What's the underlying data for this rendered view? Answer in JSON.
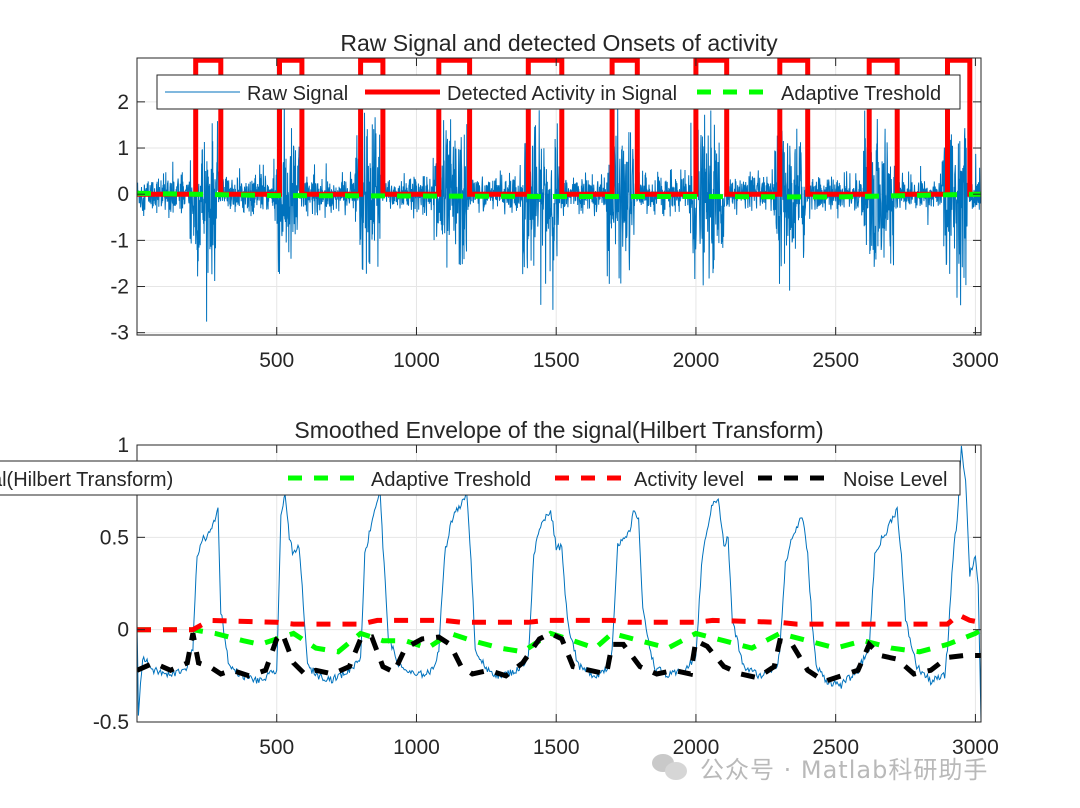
{
  "watermark": {
    "text": "公众号 · Matlab科研助手",
    "icon": "wechat-icon"
  },
  "chart_data": [
    {
      "type": "line",
      "title": "Raw Signal and detected Onsets of activity",
      "xlabel": "",
      "ylabel": "",
      "xlim": [
        0,
        3020
      ],
      "ylim": [
        -3.05,
        2.95
      ],
      "xticks": [
        500,
        1000,
        1500,
        2000,
        2500,
        3000
      ],
      "yticks": [
        -3,
        -2,
        -1,
        0,
        1,
        2
      ],
      "grid": true,
      "legend_placement": "top",
      "bursts": [
        [
          210,
          300
        ],
        [
          510,
          590
        ],
        [
          800,
          880
        ],
        [
          1080,
          1190
        ],
        [
          1400,
          1520
        ],
        [
          1700,
          1790
        ],
        [
          2000,
          2110
        ],
        [
          2300,
          2400
        ],
        [
          2620,
          2720
        ],
        [
          2900,
          2980
        ]
      ],
      "series": [
        {
          "name": "Raw Signal",
          "color": "#0072BD",
          "style": "solid",
          "description_points": {
            "baseline_amplitude": 0.4,
            "burst_amplitude_min": -3.0,
            "burst_amplitude_max": 2.6,
            "n_samples": 3020
          }
        },
        {
          "name": "Detected Activity in Signal",
          "color": "#FF0000",
          "style": "solid",
          "x": [
            0,
            210,
            210,
            300,
            300,
            510,
            510,
            590,
            590,
            800,
            800,
            880,
            880,
            1080,
            1080,
            1190,
            1190,
            1400,
            1400,
            1520,
            1520,
            1700,
            1700,
            1790,
            1790,
            2000,
            2000,
            2110,
            2110,
            2300,
            2300,
            2400,
            2400,
            2620,
            2620,
            2720,
            2720,
            2900,
            2900,
            2980,
            2980,
            3020
          ],
          "y": [
            0,
            0,
            2.9,
            2.9,
            0,
            0,
            2.9,
            2.9,
            0,
            0,
            2.9,
            2.9,
            0,
            0,
            2.9,
            2.9,
            0,
            0,
            2.9,
            2.9,
            0,
            0,
            2.9,
            2.9,
            0,
            0,
            2.9,
            2.9,
            0,
            0,
            2.9,
            2.9,
            0,
            0,
            2.9,
            2.9,
            0,
            0,
            2.9,
            2.9,
            0,
            0
          ]
        },
        {
          "name": "Adaptive Treshold",
          "color": "#00FF00",
          "style": "dashed",
          "x": [
            0,
            500,
            1000,
            1500,
            2000,
            2500,
            3020
          ],
          "y": [
            0.02,
            -0.03,
            -0.04,
            -0.05,
            -0.05,
            -0.06,
            0.0
          ]
        }
      ]
    },
    {
      "type": "line",
      "title": "Smoothed Envelope of the signal(Hilbert Transform)",
      "xlabel": "",
      "ylabel": "",
      "xlim": [
        0,
        3020
      ],
      "ylim": [
        -0.5,
        1
      ],
      "xticks": [
        500,
        1000,
        1500,
        2000,
        2500,
        3000
      ],
      "yticks": [
        -0.5,
        0,
        0.5,
        1
      ],
      "grid": true,
      "legend_placement": "top",
      "series": [
        {
          "name": "Smoothed Envelope of the signal(Hilbert Transform)",
          "color": "#0072BD",
          "style": "solid",
          "x": [
            0,
            5,
            20,
            60,
            120,
            180,
            200,
            215,
            230,
            260,
            290,
            300,
            330,
            380,
            440,
            500,
            515,
            530,
            545,
            560,
            580,
            595,
            610,
            650,
            700,
            760,
            800,
            815,
            835,
            850,
            870,
            880,
            900,
            940,
            1000,
            1060,
            1080,
            1100,
            1120,
            1140,
            1160,
            1180,
            1195,
            1210,
            1250,
            1300,
            1360,
            1400,
            1420,
            1440,
            1460,
            1480,
            1500,
            1520,
            1540,
            1580,
            1640,
            1690,
            1700,
            1720,
            1740,
            1760,
            1780,
            1795,
            1810,
            1850,
            1900,
            1960,
            2000,
            2020,
            2040,
            2060,
            2080,
            2100,
            2115,
            2130,
            2170,
            2230,
            2290,
            2300,
            2320,
            2340,
            2360,
            2380,
            2400,
            2415,
            2430,
            2470,
            2520,
            2580,
            2620,
            2640,
            2660,
            2680,
            2700,
            2720,
            2735,
            2750,
            2790,
            2840,
            2890,
            2900,
            2920,
            2935,
            2950,
            2965,
            2980,
            3000,
            3010,
            3020
          ],
          "y": [
            0.05,
            -0.45,
            -0.15,
            -0.22,
            -0.25,
            -0.2,
            -0.1,
            0.4,
            0.48,
            0.52,
            0.65,
            0.1,
            -0.2,
            -0.25,
            -0.28,
            -0.22,
            0.6,
            0.75,
            0.5,
            0.4,
            0.45,
            0.15,
            -0.2,
            -0.25,
            -0.27,
            -0.22,
            -0.15,
            0.4,
            0.55,
            0.65,
            0.75,
            0.45,
            -0.05,
            -0.2,
            -0.25,
            -0.22,
            -0.1,
            0.4,
            0.55,
            0.65,
            0.68,
            0.72,
            0.4,
            -0.1,
            -0.22,
            -0.25,
            -0.22,
            -0.15,
            0.4,
            0.55,
            0.6,
            0.65,
            0.45,
            0.45,
            0.05,
            -0.2,
            -0.25,
            -0.2,
            -0.1,
            0.45,
            0.48,
            0.52,
            0.65,
            0.6,
            0.1,
            -0.2,
            -0.25,
            -0.22,
            -0.15,
            0.35,
            0.55,
            0.68,
            0.72,
            0.45,
            0.5,
            0.05,
            -0.2,
            -0.25,
            -0.2,
            -0.1,
            0.35,
            0.48,
            0.55,
            0.62,
            0.4,
            0.05,
            -0.2,
            -0.28,
            -0.3,
            -0.22,
            -0.1,
            0.4,
            0.48,
            0.52,
            0.6,
            0.65,
            0.4,
            0.05,
            -0.2,
            -0.28,
            -0.25,
            -0.1,
            0.4,
            0.6,
            1.0,
            0.8,
            0.3,
            0.4,
            0.25,
            -0.5
          ]
        },
        {
          "name": "Adaptive Treshold",
          "color": "#00FF00",
          "style": "dashed",
          "x": [
            0,
            200,
            280,
            380,
            440,
            560,
            640,
            720,
            800,
            880,
            960,
            1040,
            1120,
            1200,
            1300,
            1380,
            1480,
            1560,
            1640,
            1700,
            1800,
            1900,
            2000,
            2100,
            2200,
            2300,
            2400,
            2500,
            2600,
            2700,
            2800,
            2900,
            3000,
            3020
          ],
          "y": [
            0.0,
            0.0,
            -0.02,
            -0.06,
            -0.08,
            -0.02,
            -0.1,
            -0.12,
            -0.02,
            -0.06,
            -0.06,
            -0.1,
            -0.02,
            -0.06,
            -0.1,
            -0.12,
            -0.02,
            -0.06,
            -0.1,
            -0.02,
            -0.06,
            -0.1,
            -0.02,
            -0.06,
            -0.1,
            -0.02,
            -0.06,
            -0.1,
            -0.06,
            -0.1,
            -0.12,
            -0.08,
            -0.02,
            0.0
          ]
        },
        {
          "name": "Activity level",
          "color": "#FF0000",
          "style": "dashed",
          "x": [
            0,
            200,
            260,
            500,
            560,
            800,
            860,
            1100,
            1160,
            1400,
            1460,
            1700,
            1760,
            2000,
            2060,
            2300,
            2360,
            2600,
            2660,
            2900,
            2940,
            2980,
            3020
          ],
          "y": [
            0.0,
            0.0,
            0.05,
            0.04,
            0.03,
            0.03,
            0.05,
            0.05,
            0.04,
            0.04,
            0.05,
            0.05,
            0.04,
            0.04,
            0.05,
            0.04,
            0.03,
            0.03,
            0.03,
            0.03,
            0.08,
            0.05,
            0.04
          ]
        },
        {
          "name": "Noise Level",
          "color": "#000000",
          "style": "dashed",
          "x": [
            0,
            60,
            120,
            180,
            200,
            220,
            260,
            300,
            340,
            400,
            460,
            500,
            520,
            560,
            600,
            640,
            700,
            760,
            800,
            840,
            880,
            920,
            960,
            1020,
            1080,
            1120,
            1160,
            1200,
            1260,
            1320,
            1380,
            1440,
            1480,
            1520,
            1560,
            1620,
            1680,
            1700,
            1740,
            1800,
            1860,
            1920,
            1980,
            2000,
            2040,
            2100,
            2160,
            2220,
            2280,
            2300,
            2340,
            2400,
            2460,
            2520,
            2580,
            2620,
            2660,
            2720,
            2780,
            2840,
            2900,
            2960,
            3020
          ],
          "y": [
            -0.22,
            -0.18,
            -0.22,
            -0.18,
            -0.02,
            -0.18,
            -0.2,
            -0.24,
            -0.22,
            -0.25,
            -0.22,
            -0.05,
            -0.02,
            -0.18,
            -0.24,
            -0.22,
            -0.24,
            -0.2,
            -0.05,
            -0.04,
            -0.2,
            -0.23,
            -0.1,
            -0.05,
            -0.04,
            -0.08,
            -0.2,
            -0.24,
            -0.22,
            -0.25,
            -0.18,
            -0.05,
            -0.02,
            -0.05,
            -0.2,
            -0.22,
            -0.24,
            -0.08,
            -0.08,
            -0.2,
            -0.24,
            -0.22,
            -0.24,
            -0.06,
            -0.09,
            -0.2,
            -0.24,
            -0.26,
            -0.2,
            -0.06,
            -0.07,
            -0.22,
            -0.28,
            -0.25,
            -0.22,
            -0.08,
            -0.14,
            -0.16,
            -0.24,
            -0.22,
            -0.15,
            -0.14,
            -0.14
          ]
        }
      ]
    }
  ]
}
